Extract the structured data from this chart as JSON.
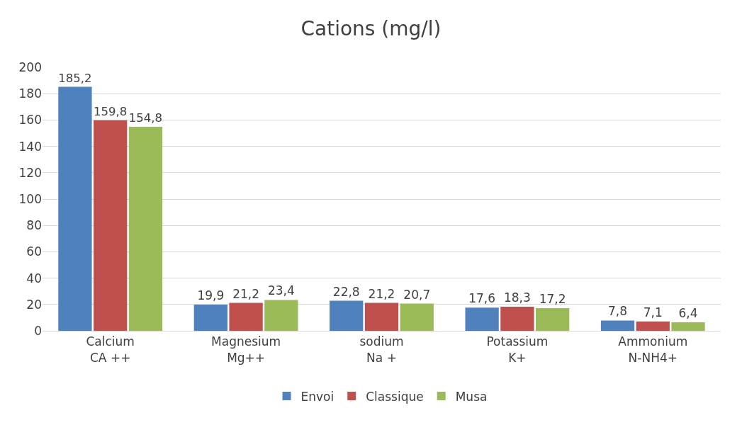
{
  "chart_data": {
    "type": "bar",
    "title": "Cations (mg/l)",
    "categories": [
      "Calcium\nCA ++",
      "Magnesium\nMg++",
      "sodium\nNa +",
      "Potassium\nK+",
      "Ammonium\nN-NH4+"
    ],
    "series": [
      {
        "name": "Envoi",
        "color": "#4f81bd",
        "values": [
          185.2,
          19.9,
          22.8,
          17.6,
          7.8
        ],
        "value_labels": [
          "185,2",
          "19,9",
          "22,8",
          "17,6",
          "7,8"
        ]
      },
      {
        "name": "Classique",
        "color": "#c0504d",
        "values": [
          159.8,
          21.2,
          21.2,
          18.3,
          7.1
        ],
        "value_labels": [
          "159,8",
          "21,2",
          "21,2",
          "18,3",
          "7,1"
        ]
      },
      {
        "name": "Musa",
        "color": "#9bbb59",
        "values": [
          154.8,
          23.4,
          20.7,
          17.2,
          6.4
        ],
        "value_labels": [
          "154,8",
          "23,4",
          "20,7",
          "17,2",
          "6,4"
        ]
      }
    ],
    "ylim": [
      0,
      200
    ],
    "yticks": [
      0,
      20,
      40,
      60,
      80,
      100,
      120,
      140,
      160,
      180,
      200
    ],
    "grid": "y",
    "legend": "bottom"
  }
}
